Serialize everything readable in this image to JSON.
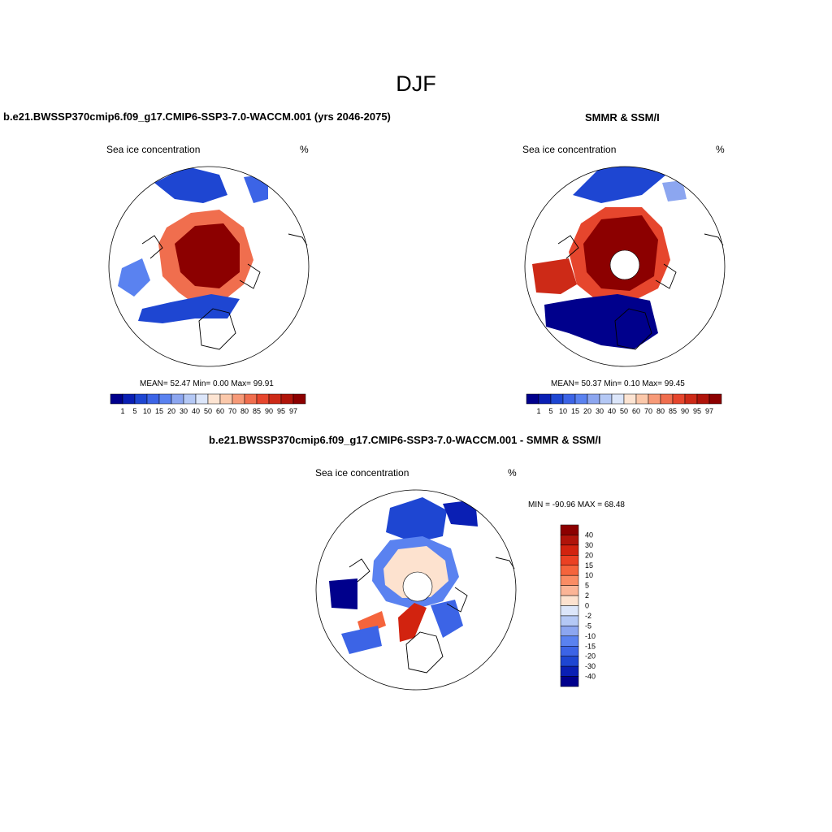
{
  "figure": {
    "title": "DJF"
  },
  "panels": {
    "model": {
      "title": "b.e21.BWSSP370cmip6.f09_g17.CMIP6-SSP3-7.0-WACCM.001 (yrs 2046-2075)",
      "variable": "Sea ice concentration",
      "units": "%",
      "stats": "MEAN=  52.47  Min=   0.00  Max=  99.91"
    },
    "obs": {
      "title": "SMMR & SSM/I",
      "variable": "Sea ice concentration",
      "units": "%",
      "stats": "MEAN=  50.37  Min=   0.10  Max=  99.45"
    },
    "diff": {
      "title": "b.e21.BWSSP370cmip6.f09_g17.CMIP6-SSP3-7.0-WACCM.001 - SMMR & SSM/I",
      "variable": "Sea ice concentration",
      "units": "%",
      "stats": "MIN = -90.96 MAX =  68.48"
    }
  },
  "colorbars": {
    "concentration": {
      "labels": [
        "1",
        "5",
        "10",
        "15",
        "20",
        "30",
        "40",
        "50",
        "60",
        "70",
        "80",
        "85",
        "90",
        "95",
        "97"
      ],
      "colors": [
        "#00008c",
        "#0a1fb4",
        "#1e46d2",
        "#3c64e6",
        "#5a82f0",
        "#8ca6f0",
        "#b4c8f5",
        "#dce6fa",
        "#fde4d2",
        "#fbc8aa",
        "#f79a78",
        "#f06e4e",
        "#e6462d",
        "#cd2a17",
        "#b0140a",
        "#8c0000"
      ]
    },
    "difference": {
      "labels": [
        "40",
        "30",
        "20",
        "15",
        "10",
        "5",
        "2",
        "0",
        "-2",
        "-5",
        "-10",
        "-15",
        "-20",
        "-30",
        "-40"
      ],
      "colors": [
        "#8c0000",
        "#b0140a",
        "#d2230f",
        "#eb4123",
        "#f5643c",
        "#fa8c64",
        "#fbb496",
        "#fde2cf",
        "#dce6fa",
        "#b4c8f5",
        "#8ca6f0",
        "#5a82f0",
        "#3c64e6",
        "#1e46d2",
        "#0a1fb4",
        "#00008c"
      ]
    }
  },
  "map_colors": {
    "outline": "#000000",
    "pole_hole": "#ffffff"
  }
}
